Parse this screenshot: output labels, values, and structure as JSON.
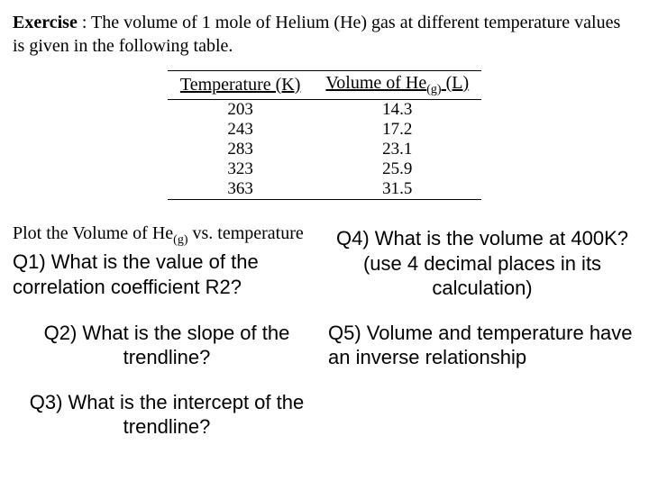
{
  "header": {
    "label": "Exercise",
    "separator": "   : ",
    "text": "The volume of 1 mole of Helium (He) gas at different temperature values is given in the following table."
  },
  "table": {
    "columns": [
      "Temperature (K)",
      "Volume of He(g) (L)"
    ],
    "col_header_left": "Temperature (K)",
    "col_header_right_pre": "Volume of He",
    "col_header_right_sub": "(g)",
    "col_header_right_post": " (L)",
    "rows": [
      [
        "203",
        "14.3"
      ],
      [
        "243",
        "17.2"
      ],
      [
        "283",
        "23.1"
      ],
      [
        "323",
        "25.9"
      ],
      [
        "363",
        "31.5"
      ]
    ],
    "border_color": "#000000",
    "background_color": "#ffffff"
  },
  "plot_instruction_pre": "Plot the Volume of He",
  "plot_instruction_sub": "(g)",
  "plot_instruction_post": " vs. temperature",
  "questions": {
    "q1": "Q1) What is the value of the correlation coefficient R2?",
    "q2": "Q2) What is the slope of the trendline?",
    "q3": "Q3) What is the intercept of the trendline?",
    "q4": "Q4) What is the volume at 400K? (use 4 decimal places in its calculation)",
    "q5": "Q5) Volume and temperature have an inverse relationship"
  },
  "colors": {
    "text": "#000000",
    "background": "#ffffff"
  }
}
